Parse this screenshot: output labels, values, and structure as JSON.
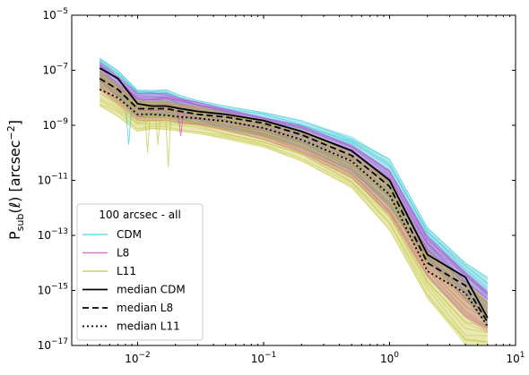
{
  "chart_data": {
    "type": "line",
    "xscale": "log",
    "yscale": "log",
    "xlim": [
      0.003,
      10
    ],
    "ylim": [
      1e-17,
      1e-05
    ],
    "ylabel_main": "P",
    "ylabel_sub": "sub",
    "ylabel_rest": "(ℓ) [arcsec",
    "ylabel_exp": "−2",
    "ylabel_end": "]",
    "xticks": [
      {
        "value": 0.01,
        "base": "10",
        "exp": "−2"
      },
      {
        "value": 0.1,
        "base": "10",
        "exp": "−1"
      },
      {
        "value": 1,
        "base": "10",
        "exp": "0"
      },
      {
        "value": 10,
        "base": "10",
        "exp": "1"
      }
    ],
    "yticks": [
      {
        "value": 1e-17,
        "base": "10",
        "exp": "−17"
      },
      {
        "value": 1e-15,
        "base": "10",
        "exp": "−15"
      },
      {
        "value": 1e-13,
        "base": "10",
        "exp": "−13"
      },
      {
        "value": 1e-11,
        "base": "10",
        "exp": "−11"
      },
      {
        "value": 1e-09,
        "base": "10",
        "exp": "−9"
      },
      {
        "value": 1e-07,
        "base": "10",
        "exp": "−7"
      },
      {
        "value": 1e-05,
        "base": "10",
        "exp": "−5"
      }
    ],
    "x": [
      0.005,
      0.007,
      0.01,
      0.013,
      0.017,
      0.022,
      0.03,
      0.05,
      0.1,
      0.2,
      0.5,
      1.0,
      2.0,
      4.0,
      6.0
    ],
    "bands": [
      {
        "name": "CDM",
        "color": "#17becf",
        "lower": [
          3e-08,
          1e-08,
          2e-09,
          2e-09,
          2e-09,
          1.5e-09,
          1.2e-09,
          8e-10,
          4e-10,
          1.5e-10,
          2e-11,
          1e-12,
          1e-14,
          5e-16,
          5e-17
        ],
        "upper": [
          3e-07,
          1e-07,
          2e-08,
          2e-08,
          2e-08,
          1.2e-08,
          8e-09,
          5e-09,
          3e-09,
          1.5e-09,
          4e-10,
          6e-11,
          2e-13,
          1e-14,
          3e-15
        ]
      },
      {
        "name": "L8",
        "color": "#cc33cc",
        "lower": [
          2e-08,
          6e-09,
          1.5e-09,
          1.5e-09,
          1.5e-09,
          1.2e-09,
          1e-09,
          6e-10,
          3e-10,
          1e-10,
          1.2e-11,
          5e-13,
          3e-15,
          1e-16,
          3e-17
        ],
        "upper": [
          2e-07,
          6e-08,
          1.5e-08,
          1.5e-08,
          1.5e-08,
          1e-08,
          7e-09,
          4e-09,
          2e-09,
          1e-09,
          2e-10,
          2.5e-11,
          1e-13,
          5e-15,
          1e-15
        ]
      },
      {
        "name": "L11",
        "color": "#bcbd22",
        "lower": [
          5e-09,
          2e-09,
          6e-10,
          7e-10,
          7e-10,
          6e-10,
          5e-10,
          3e-10,
          1.5e-10,
          5e-11,
          5e-12,
          1.5e-13,
          5e-16,
          1e-17,
          1e-17
        ],
        "upper": [
          1e-07,
          3e-08,
          8e-09,
          8e-09,
          8e-09,
          6e-09,
          5e-09,
          3e-09,
          1.5e-09,
          7e-10,
          1e-10,
          1e-11,
          3e-14,
          2e-15,
          4e-16
        ]
      }
    ],
    "medians": [
      {
        "name": "median CDM",
        "dash": "solid",
        "values": [
          1.2e-07,
          5e-08,
          6e-09,
          5e-09,
          5e-09,
          4e-09,
          3.2e-09,
          2.5e-09,
          1.5e-09,
          6e-10,
          1.2e-10,
          1e-11,
          2e-14,
          3e-15,
          1e-16
        ]
      },
      {
        "name": "median L8",
        "dash": "dashed",
        "values": [
          5e-08,
          2e-08,
          4e-09,
          4e-09,
          4e-09,
          3.2e-09,
          2.5e-09,
          2e-09,
          1.2e-09,
          4.5e-10,
          8e-11,
          6e-12,
          1e-14,
          1.5e-15,
          7e-17
        ]
      },
      {
        "name": "median L11",
        "dash": "dotted",
        "values": [
          2e-08,
          1e-08,
          2.5e-09,
          2.5e-09,
          2.3e-09,
          2e-09,
          1.8e-09,
          1.4e-09,
          8e-10,
          3e-10,
          5e-11,
          3e-12,
          5e-15,
          8e-16,
          5e-17
        ]
      }
    ],
    "spikes": [
      {
        "name": "L11",
        "x": 0.0175,
        "y": 3e-11
      },
      {
        "name": "L11",
        "x": 0.0145,
        "y": 2e-10
      },
      {
        "name": "CDM",
        "x": 0.0085,
        "y": 2e-10
      },
      {
        "name": "L8",
        "x": 0.022,
        "y": 4e-10
      },
      {
        "name": "L11",
        "x": 0.012,
        "y": 1e-10
      }
    ],
    "legend": {
      "title": "100 arcsec - all",
      "placement": "lower-left",
      "entries": [
        {
          "label": "CDM",
          "kind": "band",
          "color": "#6ddde6"
        },
        {
          "label": "L8",
          "kind": "band",
          "color": "#dd77dd"
        },
        {
          "label": "L11",
          "kind": "band",
          "color": "#d0d05c"
        },
        {
          "label": "median CDM",
          "kind": "line",
          "dash": "solid"
        },
        {
          "label": "median L8",
          "kind": "line",
          "dash": "dashed"
        },
        {
          "label": "median L11",
          "kind": "line",
          "dash": "dotted"
        }
      ]
    }
  }
}
